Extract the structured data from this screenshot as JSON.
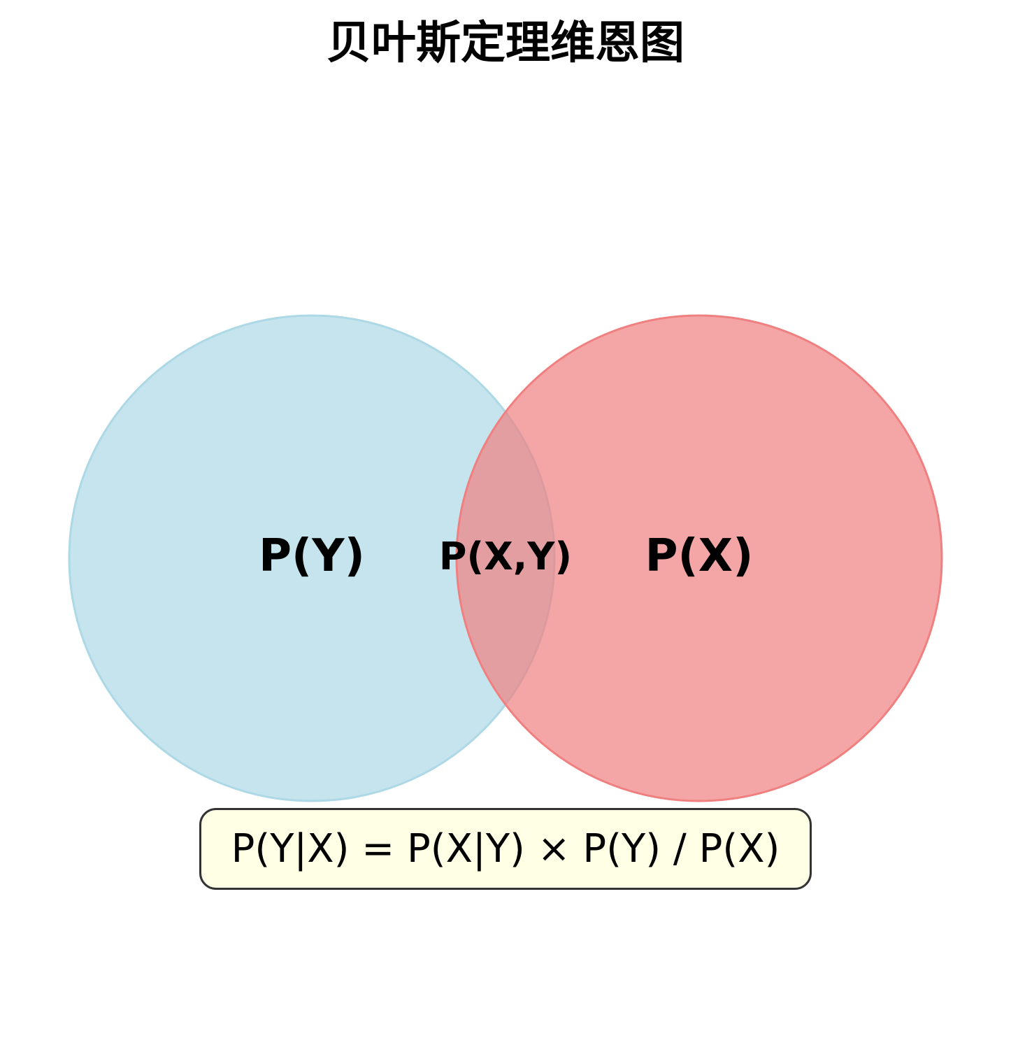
{
  "title": "贝叶斯定理维恩图",
  "circles": {
    "left": {
      "label": "P(Y)",
      "fill": "#add8e6",
      "stroke": "#9fcfe0"
    },
    "right": {
      "label": "P(X)",
      "fill": "#f08080",
      "stroke": "#e87878"
    }
  },
  "intersection_label": "P(X,Y)",
  "formula": "P(Y|X) = P(X|Y) × P(Y) / P(X)",
  "formula_box": {
    "fill": "#ffffe6",
    "border": "#333333"
  }
}
